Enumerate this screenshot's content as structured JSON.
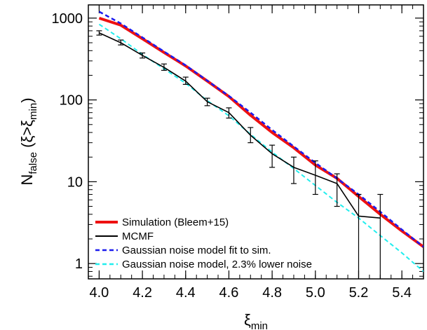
{
  "chart_data": {
    "type": "line",
    "x_axis": {
      "label_main": "ξ",
      "label_sub": "min",
      "range": [
        3.95,
        5.5
      ],
      "ticks": [
        4.0,
        4.2,
        4.4,
        4.6,
        4.8,
        5.0,
        5.2,
        5.4
      ],
      "tick_labels": [
        "4.0",
        "4.2",
        "4.4",
        "4.6",
        "4.8",
        "5.0",
        "5.2",
        "5.4"
      ]
    },
    "y_axis": {
      "label_main": "N",
      "label_sub": "false",
      "label_paren_open": " (ξ>ξ",
      "label_paren_sub": "min",
      "label_paren_close": ")",
      "scale": "log",
      "range": [
        0.65,
        1450
      ],
      "ticks": [
        1,
        10,
        100,
        1000
      ],
      "tick_labels": [
        "1",
        "10",
        "100",
        "1000"
      ]
    },
    "grid": false,
    "legend_position": "bottom-left",
    "series": [
      {
        "name": "Simulation (Bleem+15)",
        "color": "#ee1111",
        "style": "solid",
        "x": [
          4.0,
          4.1,
          4.2,
          4.3,
          4.4,
          4.5,
          4.6,
          4.7,
          4.8,
          4.9,
          5.0,
          5.1,
          5.2,
          5.3,
          5.4,
          5.5
        ],
        "y": [
          1000,
          820,
          560,
          380,
          260,
          170,
          110,
          65,
          40,
          26,
          16,
          11,
          6.6,
          4.0,
          2.5,
          1.6
        ]
      },
      {
        "name": "MCMF",
        "color": "#000000",
        "style": "solid",
        "x": [
          4.0,
          4.1,
          4.2,
          4.3,
          4.4,
          4.5,
          4.6,
          4.7,
          4.8,
          4.9,
          5.0,
          5.1,
          5.2,
          5.3
        ],
        "y": [
          660,
          500,
          350,
          250,
          170,
          95,
          70,
          37,
          22,
          15,
          12,
          9.5,
          3.8,
          3.6
        ],
        "err_lo": [
          620,
          470,
          325,
          230,
          155,
          85,
          60,
          30,
          15,
          9.5,
          7,
          5,
          0.55,
          0.55
        ],
        "err_hi": [
          700,
          540,
          375,
          275,
          190,
          105,
          80,
          46,
          28,
          20,
          18,
          12.5,
          7.0,
          7.0
        ]
      },
      {
        "name": "Gaussian noise model fit to sim.",
        "color": "#1a1aee",
        "style": "dashed",
        "x": [
          4.0,
          4.1,
          4.2,
          4.3,
          4.4,
          4.5,
          4.6,
          4.7,
          4.8,
          4.9,
          5.0,
          5.1,
          5.2,
          5.3,
          5.4,
          5.5
        ],
        "y": [
          1200,
          860,
          580,
          390,
          265,
          172,
          112,
          70,
          43,
          27,
          17,
          11,
          7,
          4.3,
          2.6,
          1.6
        ]
      },
      {
        "name": "Gaussian noise model, 2.3% lower noise",
        "color": "#22eeee",
        "style": "dashed",
        "x": [
          4.0,
          4.1,
          4.2,
          4.3,
          4.4,
          4.5,
          4.6,
          4.7,
          4.8,
          4.9,
          5.0,
          5.1,
          5.2,
          5.3,
          5.4,
          5.5
        ],
        "y": [
          840,
          560,
          360,
          240,
          160,
          98,
          64,
          38,
          23,
          14.5,
          9,
          5.6,
          3.6,
          2.2,
          1.35,
          0.8
        ]
      }
    ]
  }
}
